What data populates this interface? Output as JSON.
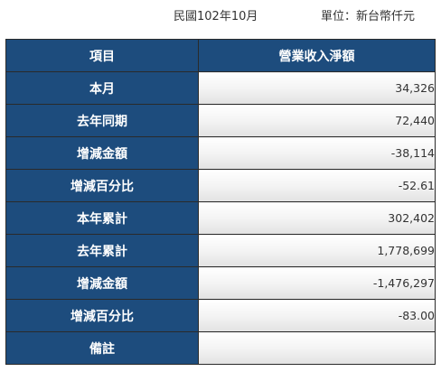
{
  "header": {
    "period": "民國102年10月",
    "unit": "單位：新台幣仟元"
  },
  "table": {
    "columns": [
      "項目",
      "營業收入淨額"
    ],
    "rows": [
      {
        "label": "本月",
        "value": "34,326"
      },
      {
        "label": "去年同期",
        "value": "72,440"
      },
      {
        "label": "增減金額",
        "value": "-38,114"
      },
      {
        "label": "增減百分比",
        "value": "-52.61"
      },
      {
        "label": "本年累計",
        "value": "302,402"
      },
      {
        "label": "去年累計",
        "value": "1,778,699"
      },
      {
        "label": "增減金額",
        "value": "-1,476,297"
      },
      {
        "label": "增減百分比",
        "value": "-83.00"
      },
      {
        "label": "備註",
        "value": ""
      }
    ]
  }
}
